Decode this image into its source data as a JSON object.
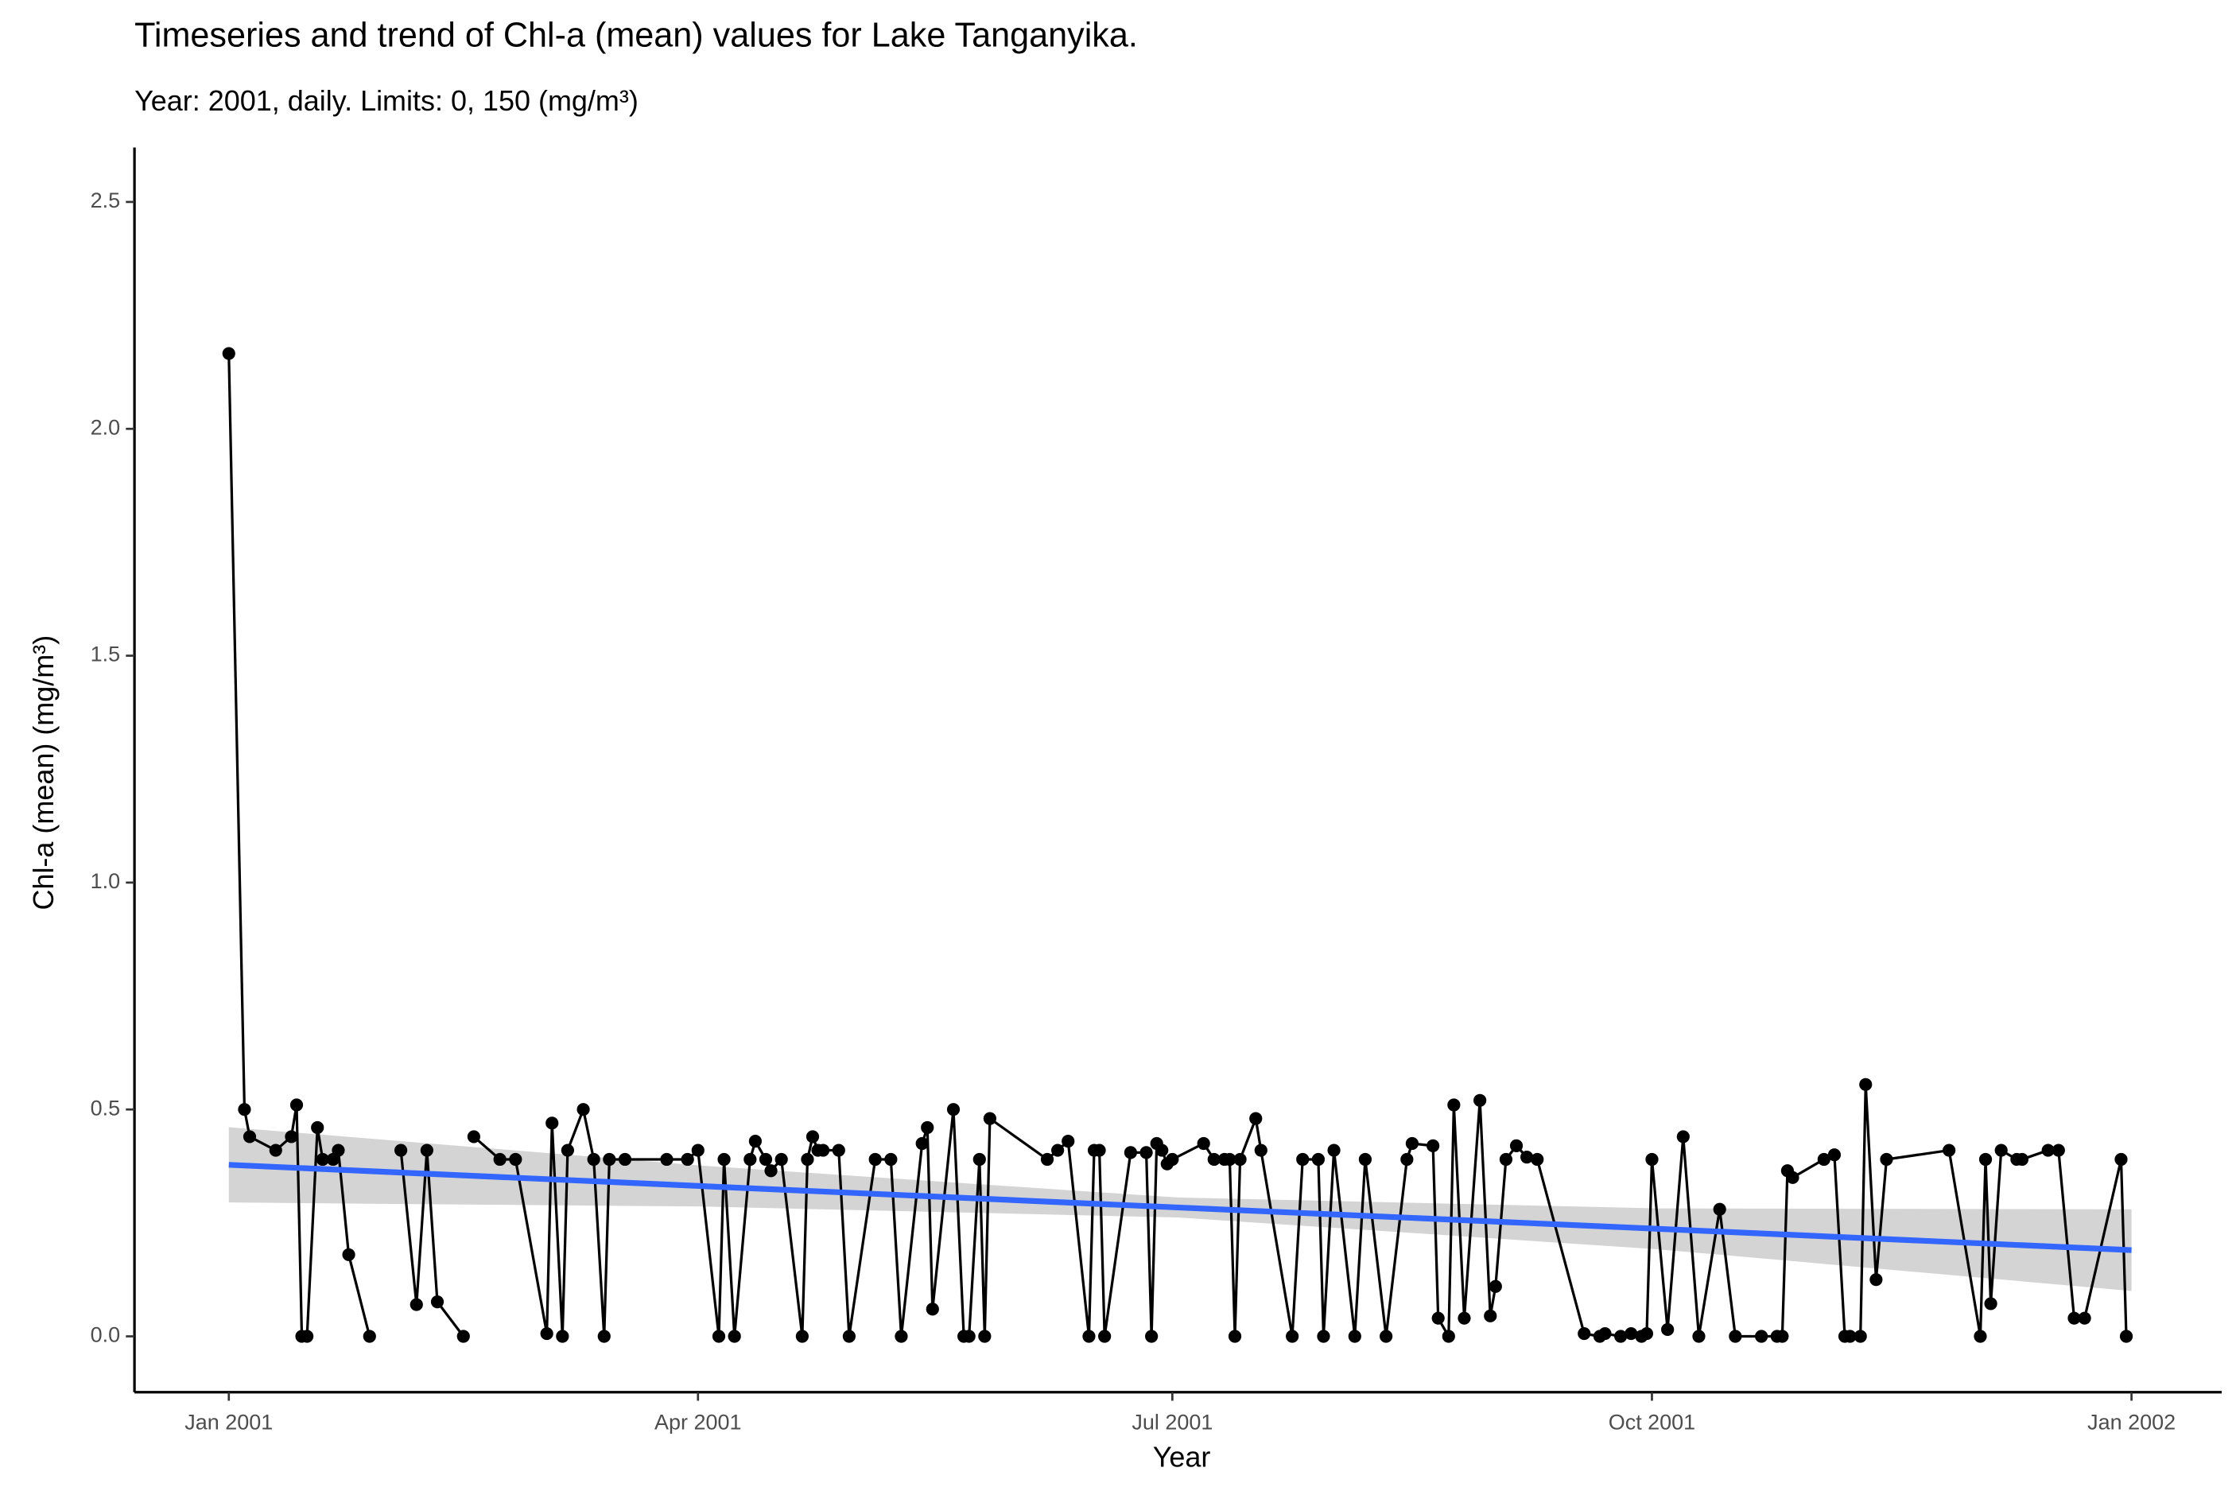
{
  "chart_data": {
    "type": "line",
    "title": "Timeseries  and trend of Chl-a (mean) values for Lake Tanganyika.",
    "subtitle": "Year: 2001, daily. Limits: 0, 150 (mg/m³)",
    "x_label": "Year",
    "y_label": "Chl-a (mean) (mg/m³)",
    "color": "#000000",
    "x": [
      0,
      3,
      4,
      9,
      12,
      13,
      14,
      15,
      17,
      18,
      20,
      21,
      23,
      27,
      30,
      33,
      36,
      38,
      40,
      45,
      46,
      47,
      52,
      55,
      61,
      62,
      64,
      65,
      68,
      70,
      72,
      73,
      76,
      84,
      88,
      90,
      94,
      95,
      97,
      100,
      101,
      103,
      104,
      106,
      110,
      111,
      112,
      113,
      114,
      117,
      119,
      124,
      127,
      129,
      133,
      134,
      135,
      139,
      141,
      142,
      144,
      145,
      146,
      157,
      159,
      161,
      165,
      166,
      167,
      168,
      173,
      176,
      177,
      178,
      179,
      180,
      181,
      187,
      189,
      191,
      192,
      193,
      194,
      197,
      198,
      204,
      206,
      209,
      210,
      212,
      216,
      218,
      222,
      226,
      227,
      231,
      232,
      234,
      235,
      237,
      240,
      242,
      243,
      245,
      247,
      249,
      251,
      260,
      263,
      264,
      267,
      269,
      271,
      272,
      273,
      276,
      279,
      282,
      286,
      289,
      294,
      297,
      298,
      299,
      300,
      306,
      308,
      310,
      311,
      313,
      314,
      316,
      318,
      330,
      336,
      337,
      338,
      340,
      343,
      344,
      349,
      351,
      354,
      356,
      363,
      364
    ],
    "values": [
      2.166,
      0.5,
      0.44,
      0.41,
      0.44,
      0.51,
      0,
      0,
      0.46,
      0.39,
      0.39,
      0.41,
      0.18,
      0,
      null,
      0.41,
      0.07,
      0.41,
      0.076,
      0,
      null,
      0.44,
      0.39,
      0.39,
      0.006,
      0.47,
      0,
      0.41,
      0.5,
      0.39,
      0,
      0.39,
      0.39,
      0.39,
      0.39,
      0.41,
      0,
      0.39,
      0,
      0.39,
      0.43,
      0.39,
      0.365,
      0.39,
      0,
      0.39,
      0.44,
      0.41,
      0.41,
      0.41,
      0,
      0.39,
      0.39,
      0,
      0.425,
      0.46,
      0.06,
      0.5,
      0,
      0,
      0.39,
      0,
      0.48,
      0.39,
      0.41,
      0.43,
      0,
      0.41,
      0.41,
      0,
      0.405,
      0.405,
      0,
      0.425,
      0.41,
      0.38,
      0.39,
      0.425,
      0.39,
      0.39,
      0.39,
      0,
      0.39,
      0.48,
      0.41,
      0,
      0.39,
      0.39,
      0,
      0.41,
      0,
      0.39,
      0,
      0.39,
      0.425,
      0.42,
      0.04,
      0,
      0.51,
      0.04,
      0.52,
      0.045,
      0.11,
      0.39,
      0.42,
      0.395,
      0.39,
      0.006,
      0,
      0.006,
      0,
      0.006,
      0,
      0.006,
      0.39,
      0.015,
      0.44,
      0,
      0.28,
      0,
      0,
      0,
      0,
      0.365,
      0.35,
      0.39,
      0.4,
      0,
      0,
      0,
      0.555,
      0.125,
      0.39,
      0.41,
      0,
      0.39,
      0.072,
      0.41,
      0.39,
      0.39,
      0.41,
      0.41,
      0.04,
      0.04,
      0.39,
      0
    ],
    "trend": {
      "color": "#3366ff",
      "band_color": "#d4d4d4",
      "x": [
        0,
        91,
        182,
        274,
        365
      ],
      "values": [
        0.378,
        0.331,
        0.284,
        0.237,
        0.19
      ],
      "lower": [
        0.295,
        0.286,
        0.262,
        0.192,
        0.1
      ],
      "upper": [
        0.461,
        0.376,
        0.306,
        0.282,
        0.28
      ]
    },
    "xlim": [
      -18.1,
      382.3
    ],
    "ylim": [
      -0.123,
      2.62
    ],
    "xticks": [
      {
        "value": 0,
        "label": "Jan 2001"
      },
      {
        "value": 90,
        "label": "Apr 2001"
      },
      {
        "value": 181,
        "label": "Jul 2001"
      },
      {
        "value": 273,
        "label": "Oct 2001"
      },
      {
        "value": 365,
        "label": "Jan 2002"
      }
    ],
    "yticks": [
      {
        "value": 0,
        "label": "0.0"
      },
      0.5,
      {
        "value": 1,
        "label": "1.0"
      },
      1.5,
      {
        "value": 2,
        "label": "2.0"
      },
      2.5
    ],
    "grid": false
  }
}
